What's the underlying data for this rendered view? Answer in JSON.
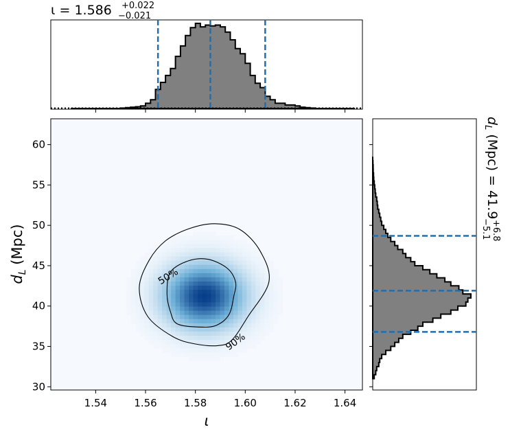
{
  "chart_data": {
    "type": "corner",
    "top_title": {
      "prefix": "ι = ",
      "median": "1.586",
      "upper": "+0.022",
      "lower": "−0.021"
    },
    "right_title": {
      "prefix": "d",
      "subscript": "L",
      "mid": " (Mpc) = ",
      "median": "41.9",
      "upper": "+6.8",
      "lower": "−5.1"
    },
    "xlabel": "ι",
    "ylabel": {
      "main": "d",
      "subscript": "L",
      "suffix": " (Mpc)"
    },
    "xlim": [
      1.522,
      1.647
    ],
    "ylim": [
      29.6,
      63.2
    ],
    "xticks": [
      "1.54",
      "1.56",
      "1.58",
      "1.60",
      "1.62",
      "1.64"
    ],
    "yticks": [
      "30",
      "35",
      "40",
      "45",
      "50",
      "55",
      "60"
    ],
    "iota_quantiles": [
      1.565,
      1.586,
      1.608
    ],
    "dL_quantiles": [
      36.8,
      41.9,
      48.7
    ],
    "iota_histogram": {
      "bin_edges": [
        1.53,
        1.532,
        1.534,
        1.536,
        1.538,
        1.54,
        1.542,
        1.544,
        1.546,
        1.548,
        1.55,
        1.552,
        1.554,
        1.556,
        1.558,
        1.56,
        1.562,
        1.564,
        1.566,
        1.568,
        1.57,
        1.572,
        1.574,
        1.576,
        1.578,
        1.58,
        1.582,
        1.584,
        1.586,
        1.588,
        1.59,
        1.592,
        1.594,
        1.596,
        1.598,
        1.6,
        1.602,
        1.604,
        1.606,
        1.608,
        1.61,
        1.612,
        1.614,
        1.616,
        1.618,
        1.62,
        1.622,
        1.624,
        1.626,
        1.628,
        1.63,
        1.632,
        1.634,
        1.636,
        1.638,
        1.64,
        1.642,
        1.644
      ],
      "values": [
        0.0,
        0.0,
        0.0,
        0.0,
        0.0,
        0.0,
        0.0,
        0.0,
        0.0,
        0.0,
        0.005,
        0.01,
        0.015,
        0.02,
        0.03,
        0.06,
        0.1,
        0.22,
        0.3,
        0.38,
        0.46,
        0.6,
        0.72,
        0.84,
        0.93,
        0.98,
        0.94,
        0.96,
        0.95,
        0.96,
        0.94,
        0.88,
        0.79,
        0.69,
        0.63,
        0.52,
        0.38,
        0.29,
        0.24,
        0.14,
        0.1,
        0.06,
        0.06,
        0.04,
        0.04,
        0.03,
        0.015,
        0.01,
        0.005,
        0.0,
        0.0,
        0.0,
        0.0,
        0.0,
        0.0,
        0.0,
        0.0
      ]
    },
    "dL_histogram": {
      "bin_edges": [
        31.0,
        31.5,
        32.0,
        32.5,
        33.0,
        33.5,
        34.0,
        34.5,
        35.0,
        35.5,
        36.0,
        36.5,
        37.0,
        37.5,
        38.0,
        38.5,
        39.0,
        39.5,
        40.0,
        40.5,
        41.0,
        41.5,
        42.0,
        42.5,
        43.0,
        43.5,
        44.0,
        44.5,
        45.0,
        45.5,
        46.0,
        46.5,
        47.0,
        47.5,
        48.0,
        48.5,
        49.0,
        49.5,
        50.0,
        50.5,
        51.0,
        51.5,
        52.0,
        52.5,
        53.0,
        53.5,
        54.0,
        54.5,
        55.0,
        55.5,
        56.0,
        56.5,
        57.0,
        57.5,
        58.0,
        58.5
      ],
      "values": [
        0.015,
        0.03,
        0.04,
        0.06,
        0.07,
        0.09,
        0.13,
        0.18,
        0.22,
        0.26,
        0.3,
        0.38,
        0.45,
        0.5,
        0.6,
        0.68,
        0.78,
        0.85,
        0.93,
        0.95,
        0.98,
        0.9,
        0.86,
        0.78,
        0.72,
        0.64,
        0.57,
        0.5,
        0.42,
        0.38,
        0.33,
        0.3,
        0.25,
        0.22,
        0.18,
        0.15,
        0.13,
        0.11,
        0.09,
        0.08,
        0.07,
        0.06,
        0.05,
        0.045,
        0.04,
        0.03,
        0.025,
        0.02,
        0.015,
        0.01,
        0.008,
        0.005,
        0.004,
        0.002,
        0.0
      ]
    },
    "density": {
      "center": [
        1.5835,
        41.2
      ],
      "sigma": [
        0.0105,
        2.6
      ]
    },
    "contours": [
      {
        "label": "50%",
        "points": [
          [
            1.5727,
            37.8
          ],
          [
            1.5815,
            37.4
          ],
          [
            1.5883,
            37.6
          ],
          [
            1.5934,
            38.9
          ],
          [
            1.5954,
            41.2
          ],
          [
            1.5961,
            43.0
          ],
          [
            1.5927,
            44.7
          ],
          [
            1.585,
            45.8
          ],
          [
            1.5772,
            45.6
          ],
          [
            1.57,
            44.2
          ],
          [
            1.5686,
            41.5
          ],
          [
            1.57,
            39.3
          ]
        ],
        "label_at": [
          1.569,
          43.7
        ]
      },
      {
        "label": "90%",
        "points": [
          [
            1.571,
            36.2
          ],
          [
            1.58,
            35.3
          ],
          [
            1.5892,
            35.1
          ],
          [
            1.5947,
            35.8
          ],
          [
            1.6011,
            38.7
          ],
          [
            1.6095,
            43.0
          ],
          [
            1.606,
            46.8
          ],
          [
            1.5978,
            49.5
          ],
          [
            1.5877,
            50.2
          ],
          [
            1.5776,
            49.6
          ],
          [
            1.5681,
            48.1
          ],
          [
            1.5615,
            45.7
          ],
          [
            1.5575,
            42.3
          ],
          [
            1.5609,
            38.7
          ]
        ],
        "label_at": [
          1.596,
          35.6
        ]
      }
    ]
  }
}
